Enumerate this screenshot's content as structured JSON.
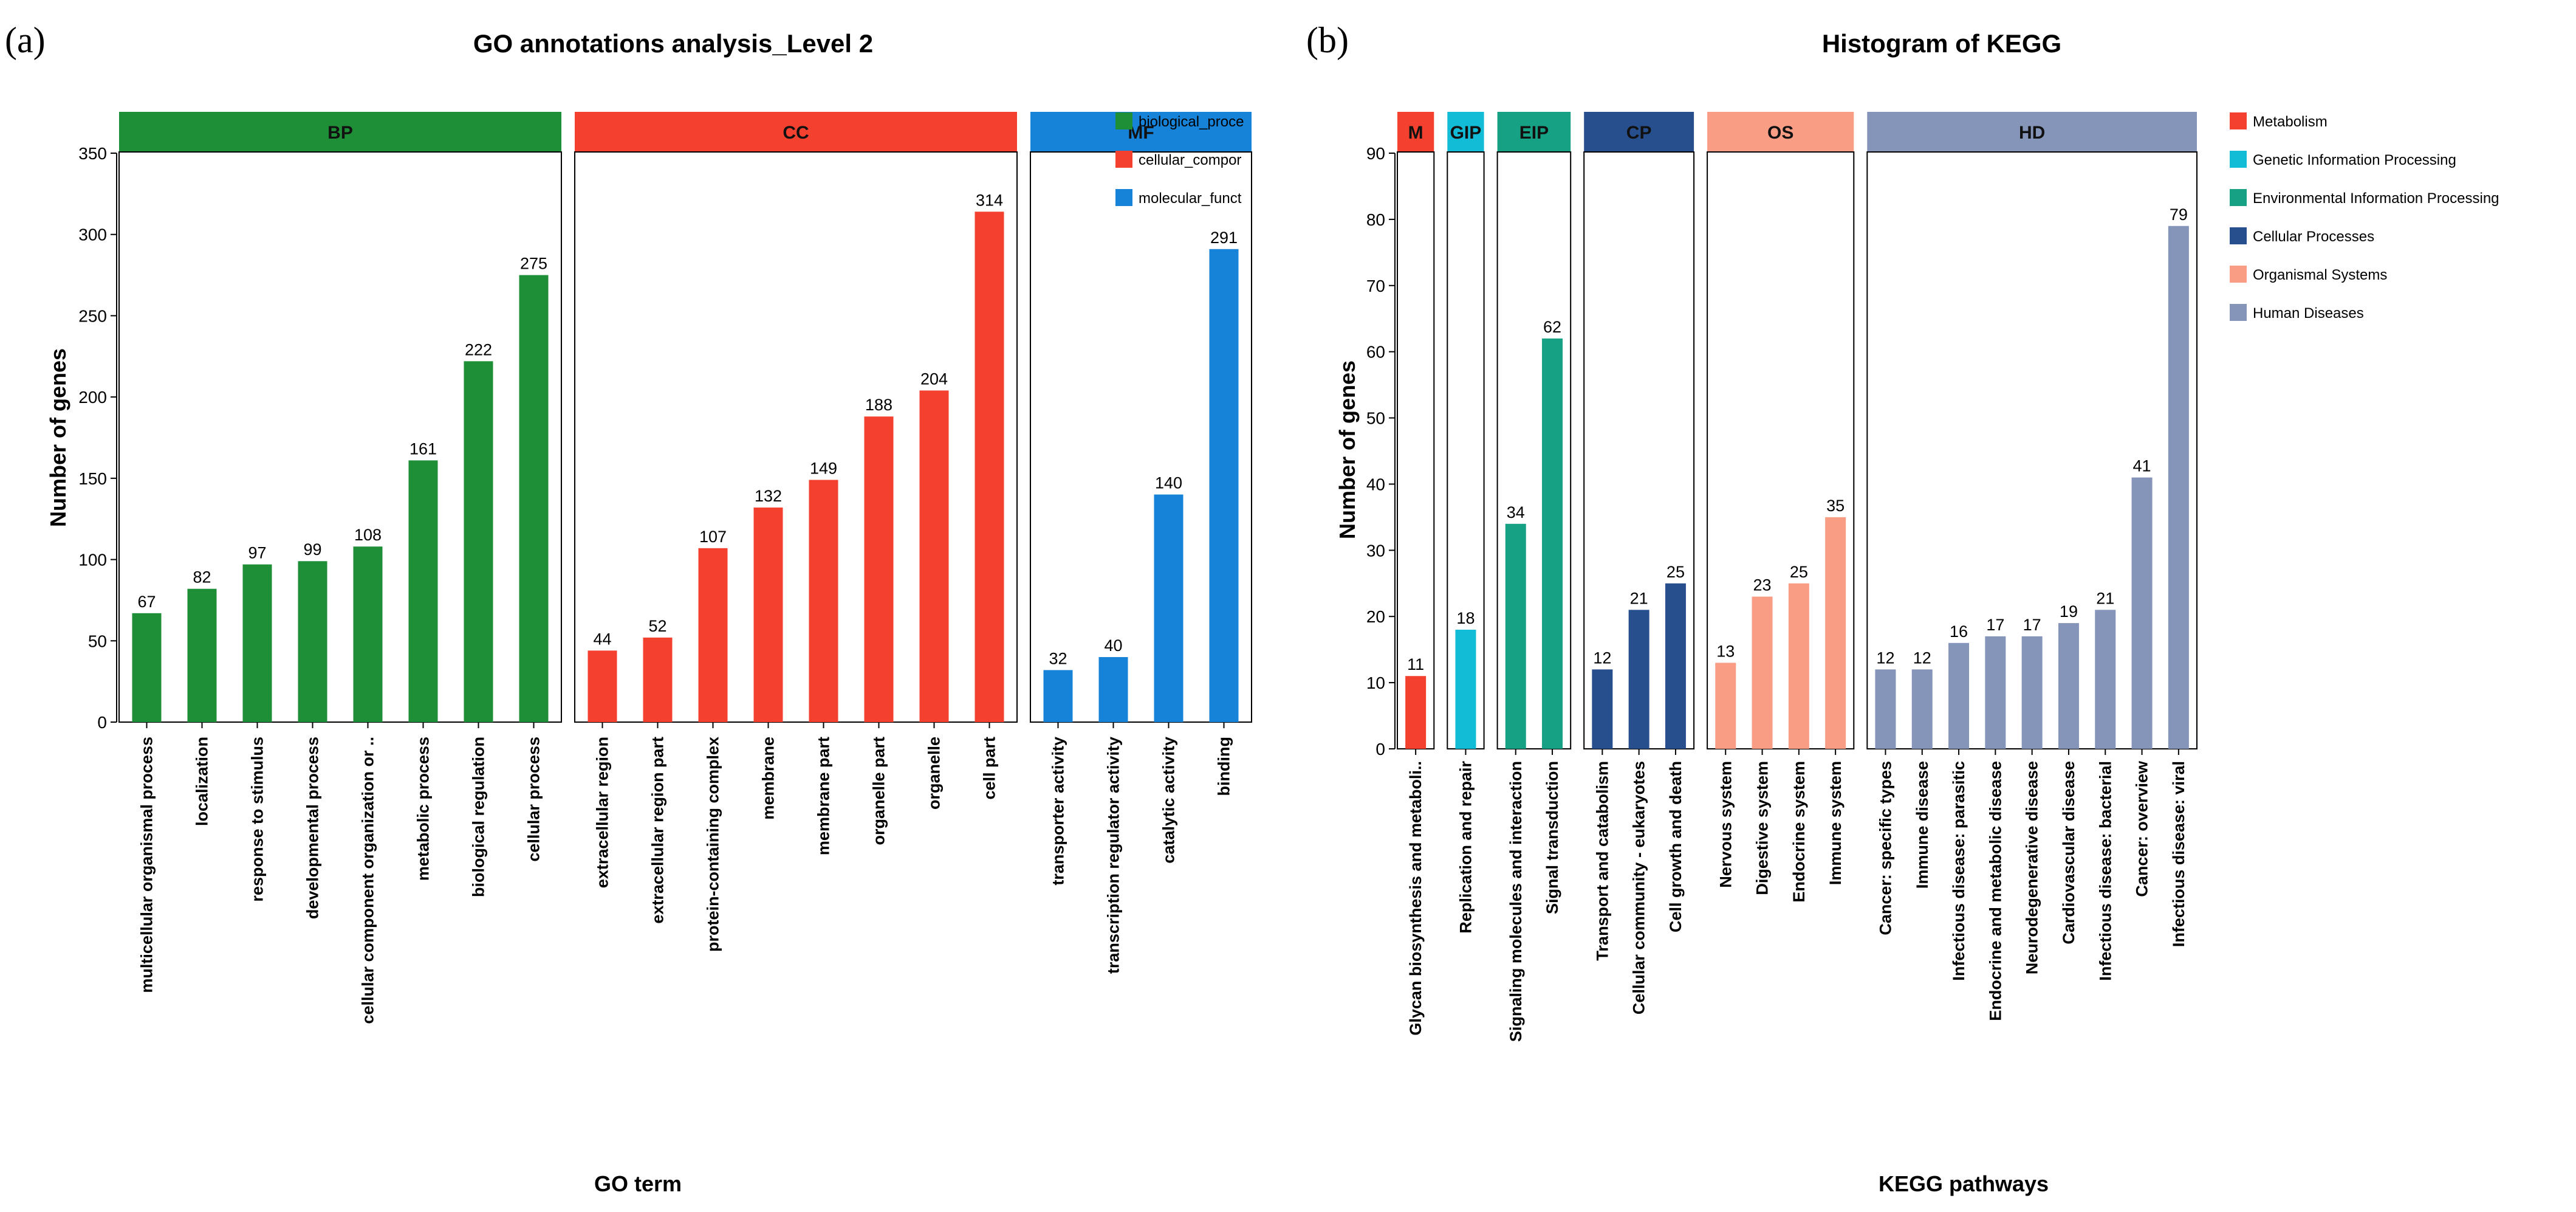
{
  "panels": {
    "a": "(a)",
    "b": "(b)"
  },
  "chart_data": [
    {
      "type": "bar",
      "title": "GO annotations analysis_Level 2",
      "xlabel": "GO term",
      "ylabel": "Number of genes",
      "ylim": [
        0,
        350
      ],
      "yticks": [
        0,
        50,
        100,
        150,
        200,
        250,
        300,
        350
      ],
      "legend_position": "right",
      "groups": [
        {
          "key": "BP",
          "color": "#1f8f37",
          "legend": "biological_proce",
          "categories": [
            "multicellular organismal process",
            "localization",
            "response to stimulus",
            "developmental process",
            "cellular component organization or ..",
            "metabolic process",
            "biological regulation",
            "cellular process"
          ],
          "values": [
            67,
            82,
            97,
            99,
            108,
            161,
            222,
            275
          ]
        },
        {
          "key": "CC",
          "color": "#f4412f",
          "legend": "cellular_compor",
          "categories": [
            "extracellular region",
            "extracellular region part",
            "protein-containing complex",
            "membrane",
            "membrane part",
            "organelle part",
            "organelle",
            "cell part"
          ],
          "values": [
            44,
            52,
            107,
            132,
            149,
            188,
            204,
            314
          ]
        },
        {
          "key": "MF",
          "color": "#1683d8",
          "legend": "molecular_funct",
          "categories": [
            "transporter activity",
            "transcription regulator activity",
            "catalytic activity",
            "binding"
          ],
          "values": [
            32,
            40,
            140,
            291
          ]
        }
      ]
    },
    {
      "type": "bar",
      "title": "Histogram of KEGG",
      "xlabel": "KEGG pathways",
      "ylabel": "Number of genes",
      "ylim": [
        0,
        90
      ],
      "yticks": [
        0,
        10,
        20,
        30,
        40,
        50,
        60,
        70,
        80,
        90
      ],
      "legend_position": "right",
      "groups": [
        {
          "key": "M",
          "color": "#f4412f",
          "legend": "Metabolism",
          "categories": [
            "Glycan biosynthesis and metaboli.."
          ],
          "values": [
            11
          ]
        },
        {
          "key": "GIP",
          "color": "#13bcd6",
          "legend": "Genetic Information Processing",
          "categories": [
            "Replication and repair"
          ],
          "values": [
            18
          ]
        },
        {
          "key": "EIP",
          "color": "#17a184",
          "legend": "Environmental Information Processing",
          "categories": [
            "Signaling molecules and interaction",
            "Signal transduction"
          ],
          "values": [
            34,
            62
          ]
        },
        {
          "key": "CP",
          "color": "#274f8e",
          "legend": "Cellular Processes",
          "categories": [
            "Transport and catabolism",
            "Cellular community - eukaryotes",
            "Cell growth and death"
          ],
          "values": [
            12,
            21,
            25
          ]
        },
        {
          "key": "OS",
          "color": "#f99d85",
          "legend": "Organismal Systems",
          "categories": [
            "Nervous system",
            "Digestive system",
            "Endocrine system",
            "Immune system"
          ],
          "values": [
            13,
            23,
            25,
            35
          ]
        },
        {
          "key": "HD",
          "color": "#8595ba",
          "legend": "Human Diseases",
          "categories": [
            "Cancer: specific types",
            "Immune disease",
            "Infectious disease: parasitic",
            "Endocrine and metabolic disease",
            "Neurodegenerative disease",
            "Cardiovascular disease",
            "Infectious disease: bacterial",
            "Cancer: overview",
            "Infectious disease: viral"
          ],
          "values": [
            12,
            12,
            16,
            17,
            17,
            19,
            21,
            41,
            79
          ]
        }
      ]
    }
  ]
}
